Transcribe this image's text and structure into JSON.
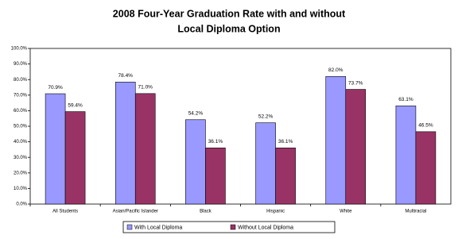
{
  "chart_data": {
    "type": "bar",
    "title": "2008 Four-Year Graduation Rate with and without",
    "subtitle": "Local Diploma Option",
    "categories": [
      "All Students",
      "Asian/Pacific Islander",
      "Black",
      "Hispanic",
      "White",
      "Multiracial"
    ],
    "series": [
      {
        "name": "With Local Diploma",
        "color": "#9999ff",
        "values": [
          70.9,
          78.4,
          54.2,
          52.2,
          82.0,
          63.1
        ],
        "value_labels": [
          "70.9%",
          "78.4%",
          "54.2%",
          "52.2%",
          "82.0%",
          "63.1%"
        ]
      },
      {
        "name": "Without Local Diploma",
        "color": "#993366",
        "values": [
          59.4,
          71.0,
          36.1,
          36.1,
          73.7,
          46.5
        ],
        "value_labels": [
          "59.4%",
          "71.0%",
          "36.1%",
          "36.1%",
          "73.7%",
          "46.5%"
        ]
      }
    ],
    "ylim": [
      0,
      100
    ],
    "yticks": [
      {
        "value": 0,
        "label": "0.0%"
      },
      {
        "value": 10,
        "label": "10.0%"
      },
      {
        "value": 20,
        "label": "20.0%"
      },
      {
        "value": 30,
        "label": "30.0%"
      },
      {
        "value": 40,
        "label": "40.0%"
      },
      {
        "value": 50,
        "label": "50.0%"
      },
      {
        "value": 60,
        "label": "60.0%"
      },
      {
        "value": 70,
        "label": "70.0%"
      },
      {
        "value": 80,
        "label": "80.0%"
      },
      {
        "value": 90,
        "label": "90.0%"
      },
      {
        "value": 100,
        "label": "100.0%"
      }
    ],
    "grid": false,
    "legend": "bottom"
  }
}
